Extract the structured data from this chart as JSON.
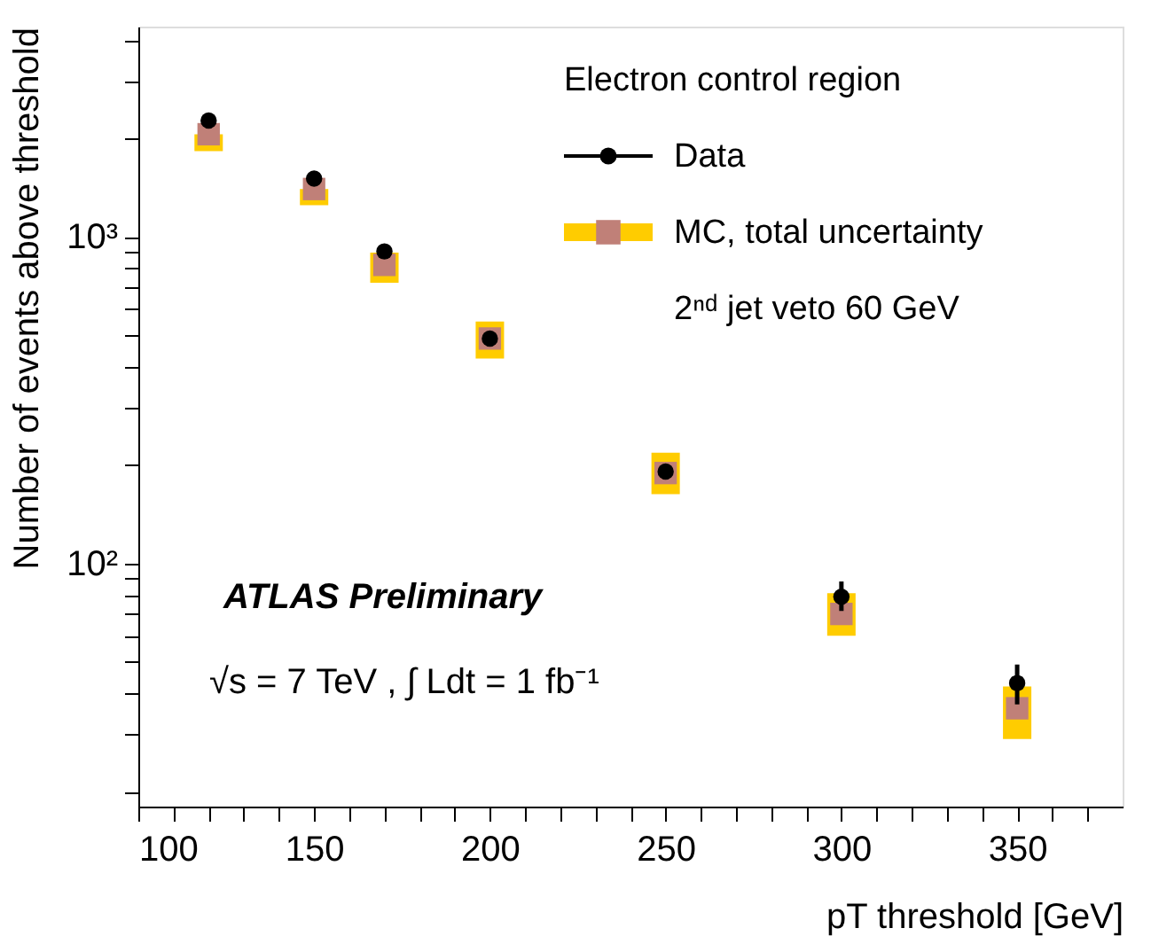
{
  "chart_data": {
    "type": "scatter",
    "x": [
      120,
      150,
      170,
      200,
      250,
      300,
      350
    ],
    "xlabel": "pT threshold [GeV]",
    "ylabel": "Number of events above threshold",
    "legend_title": "Electron control region",
    "log": true,
    "xlim": [
      100,
      380
    ],
    "xticks": [
      100,
      {
        "value": 110,
        "label": null
      },
      {
        "value": 120,
        "label": null
      },
      {
        "value": 130,
        "label": null
      },
      {
        "value": 140,
        "label": null
      },
      150,
      {
        "value": 160,
        "label": null
      },
      {
        "value": 170,
        "label": null
      },
      {
        "value": 180,
        "label": null
      },
      {
        "value": 190,
        "label": null
      },
      200,
      {
        "value": 210,
        "label": null
      },
      {
        "value": 220,
        "label": null
      },
      {
        "value": 230,
        "label": null
      },
      {
        "value": 240,
        "label": null
      },
      250,
      {
        "value": 260,
        "label": null
      },
      {
        "value": 270,
        "label": null
      },
      {
        "value": 280,
        "label": null
      },
      {
        "value": 290,
        "label": null
      },
      300,
      {
        "value": 310,
        "label": null
      },
      {
        "value": 320,
        "label": null
      },
      {
        "value": 330,
        "label": null
      },
      {
        "value": 340,
        "label": null
      },
      350,
      {
        "value": 360,
        "label": null
      },
      {
        "value": 370,
        "label": null
      }
    ],
    "ylim": [
      18,
      4400
    ],
    "yticks": [
      {
        "value": 20,
        "label": null
      },
      {
        "value": 30,
        "label": null
      },
      {
        "value": 40,
        "label": null
      },
      {
        "value": 50,
        "label": null
      },
      {
        "value": 60,
        "label": null
      },
      {
        "value": 70,
        "label": null
      },
      {
        "value": 80,
        "label": null
      },
      {
        "value": 90,
        "label": null
      },
      {
        "value": 100,
        "label": "10²"
      },
      {
        "value": 200,
        "label": null
      },
      {
        "value": 300,
        "label": null
      },
      {
        "value": 400,
        "label": null
      },
      {
        "value": 500,
        "label": null
      },
      {
        "value": 600,
        "label": null
      },
      {
        "value": 700,
        "label": null
      },
      {
        "value": 800,
        "label": null
      },
      {
        "value": 900,
        "label": null
      },
      {
        "value": 1000,
        "label": "10³"
      },
      {
        "value": 2000,
        "label": null
      },
      {
        "value": 3000,
        "label": null
      },
      {
        "value": 4000,
        "label": null
      }
    ],
    "series": [
      {
        "name": "MC, total uncertainty",
        "marker": "square",
        "color": "#c08078",
        "values": [
          2060,
          1400,
          820,
          488,
          189,
          70,
          36
        ],
        "errors": [
          [
            1830,
            2060
          ],
          [
            1250,
            1400
          ],
          [
            723,
            894
          ],
          [
            424,
            550
          ],
          [
            163,
            218
          ],
          [
            60,
            81
          ],
          [
            29,
            42
          ]
        ]
      },
      {
        "name": "Data",
        "marker": "circle",
        "color": "#000000",
        "values": [
          2270,
          1507,
          902,
          488,
          191,
          79,
          43
        ],
        "errors": [
          null,
          null,
          null,
          null,
          null,
          [
            71.5,
            88
          ],
          [
            37,
            49
          ]
        ]
      }
    ],
    "legend": "top right",
    "grid": false,
    "annotations": [
      "2ⁿᵈ jet veto 60 GeV",
      "ATLAS Preliminary",
      "√s = 7 TeV ,  ∫ Ldt = 1 fb⁻¹"
    ]
  }
}
